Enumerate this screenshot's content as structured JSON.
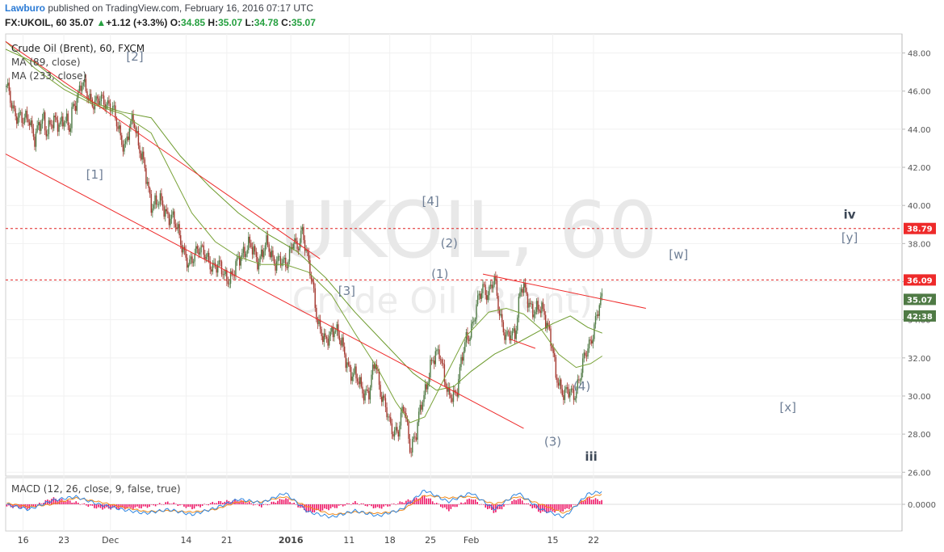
{
  "header": {
    "author": "Lawburo",
    "published": "published on TradingView.com, February 16, 2016 07:17 UTC",
    "symbol": "FX:UKOIL, 60",
    "last": "35.07",
    "change_arrow": "▲",
    "change": "+1.12 (+3.3%)",
    "o_label": "O:",
    "o": "34.85",
    "h_label": "H:",
    "h": "35.07",
    "l_label": "L:",
    "l": "34.78",
    "c_label": "C:",
    "c": "35.07"
  },
  "watermark": {
    "line1": "UKOIL, 60",
    "line2": "Crude Oil (Brent)"
  },
  "legend": {
    "title": "Crude Oil (Brent), 60, FXCM",
    "ma1": "MA (89, close)",
    "ma2": "MA (233, close)",
    "macd": "MACD (12, 26, close, 9, false, true)"
  },
  "colors": {
    "candle_up": "#4f7a45",
    "candle_down": "#a4382f",
    "channel": "#ee2a2a",
    "ma89": "#7aa33a",
    "ma233": "#6c9a2c",
    "hline": "#e02020",
    "macd": "#2f86e0",
    "signal": "#f08a1a",
    "hist": "#ee1566",
    "wave_label": "#6f7f96",
    "label_dark": "#3c4756"
  },
  "price_badges": [
    {
      "text": "38.79",
      "value": 38.79,
      "bg": "#ee2a2a"
    },
    {
      "text": "36.09",
      "value": 36.09,
      "bg": "#ee2a2a"
    },
    {
      "text": "35.07",
      "value": 35.07,
      "bg": "#4f7a45"
    },
    {
      "text": "42:38",
      "value": 34.2,
      "bg": "#4f7a45"
    }
  ],
  "macd_badge": "0.0000",
  "wave_labels": [
    {
      "text": "[2]",
      "date": 22.2,
      "price": 47.6,
      "style": "light"
    },
    {
      "text": "[1]",
      "date": 15.3,
      "price": 41.4,
      "style": "light"
    },
    {
      "text": "[3]",
      "date": 58.6,
      "price": 35.3,
      "style": "light"
    },
    {
      "text": "[4]",
      "date": 73.0,
      "price": 40.0,
      "style": "light"
    },
    {
      "text": "(2)",
      "date": 76.2,
      "price": 37.8,
      "style": "light"
    },
    {
      "text": "(1)",
      "date": 74.6,
      "price": 36.2,
      "style": "light"
    },
    {
      "text": "(4)",
      "date": 99.0,
      "price": 30.3,
      "style": "light"
    },
    {
      "text": "(3)",
      "date": 94.0,
      "price": 27.4,
      "style": "light"
    },
    {
      "text": "iii",
      "date": 100.6,
      "price": 26.6,
      "style": "dark"
    },
    {
      "text": "[w]",
      "date": 115.6,
      "price": 37.2,
      "style": "light"
    },
    {
      "text": "[x]",
      "date": 134.4,
      "price": 29.2,
      "style": "light"
    },
    {
      "text": "iv",
      "date": 145.0,
      "price": 39.3,
      "style": "dark"
    },
    {
      "text": "[y]",
      "date": 145.0,
      "price": 38.1,
      "style": "light"
    }
  ],
  "chart_data": {
    "type": "candlestick",
    "x_unit": "days since Nov 13, 2015",
    "xlim": [
      0,
      154
    ],
    "ylim": [
      25.8,
      49.0
    ],
    "y_ticks": [
      "26.00",
      "28.00",
      "30.00",
      "32.00",
      "34.00",
      "36.00",
      "38.00",
      "40.00",
      "42.00",
      "44.00",
      "46.00",
      "48.00"
    ],
    "x_ticks": [
      {
        "label": "16",
        "x": 3
      },
      {
        "label": "23",
        "x": 10
      },
      {
        "label": "Dec",
        "x": 18
      },
      {
        "label": "14",
        "x": 31
      },
      {
        "label": "21",
        "x": 38
      },
      {
        "label": "2016",
        "x": 49,
        "bold": true
      },
      {
        "label": "11",
        "x": 59
      },
      {
        "label": "18",
        "x": 66
      },
      {
        "label": "25",
        "x": 73
      },
      {
        "label": "Feb",
        "x": 80
      },
      {
        "label": "15",
        "x": 94
      },
      {
        "label": "22",
        "x": 101
      }
    ],
    "price_path": [
      [
        0,
        46.2
      ],
      [
        1.5,
        45.0
      ],
      [
        3,
        44.3
      ],
      [
        4,
        44.8
      ],
      [
        5,
        43.4
      ],
      [
        6.5,
        44.7
      ],
      [
        7,
        44.0
      ],
      [
        8.5,
        44.3
      ],
      [
        10,
        44.6
      ],
      [
        11,
        43.8
      ],
      [
        11.5,
        45.2
      ],
      [
        13,
        46.3
      ],
      [
        14,
        45.9
      ],
      [
        15.5,
        45.3
      ],
      [
        17,
        45.6
      ],
      [
        18,
        45.2
      ],
      [
        19.5,
        44.0
      ],
      [
        20.5,
        43.0
      ],
      [
        22,
        44.7
      ],
      [
        23,
        43.0
      ],
      [
        25,
        40.2
      ],
      [
        27,
        40.0
      ],
      [
        28.5,
        39.3
      ],
      [
        30,
        38.4
      ],
      [
        31.5,
        36.6
      ],
      [
        33,
        38.0
      ],
      [
        34.5,
        37.1
      ],
      [
        36,
        36.9
      ],
      [
        37.5,
        36.4
      ],
      [
        39,
        36.2
      ],
      [
        40.5,
        37.6
      ],
      [
        42,
        37.8
      ],
      [
        43.5,
        37.2
      ],
      [
        45,
        37.9
      ],
      [
        46.5,
        37.0
      ],
      [
        48,
        36.9
      ],
      [
        49.5,
        38.2
      ],
      [
        50,
        37.4
      ],
      [
        51,
        38.9
      ],
      [
        52,
        37.0
      ],
      [
        53.5,
        34.2
      ],
      [
        55,
        32.6
      ],
      [
        56.5,
        33.8
      ],
      [
        58,
        32.3
      ],
      [
        59.5,
        31.2
      ],
      [
        61,
        30.5
      ],
      [
        62.5,
        30.1
      ],
      [
        63.5,
        31.9
      ],
      [
        64.5,
        30.2
      ],
      [
        66,
        28.4
      ],
      [
        67.5,
        28.2
      ],
      [
        68.5,
        29.4
      ],
      [
        69.5,
        27.4
      ],
      [
        70.5,
        27.8
      ],
      [
        71.5,
        29.8
      ],
      [
        73,
        31.4
      ],
      [
        74.5,
        32.6
      ],
      [
        76,
        29.8
      ],
      [
        77.5,
        30.4
      ],
      [
        79,
        32.8
      ],
      [
        80.5,
        34.1
      ],
      [
        82,
        35.8
      ],
      [
        83,
        35.4
      ],
      [
        84,
        36.0
      ],
      [
        85,
        34.3
      ],
      [
        86,
        32.9
      ],
      [
        87.5,
        33.4
      ],
      [
        88.5,
        35.7
      ],
      [
        89.5,
        35.2
      ],
      [
        91,
        34.4
      ],
      [
        92.5,
        34.5
      ],
      [
        93.5,
        33.3
      ],
      [
        94.5,
        31.0
      ],
      [
        96,
        30.2
      ],
      [
        97.5,
        30.0
      ],
      [
        99,
        31.4
      ],
      [
        100.5,
        33.0
      ],
      [
        101.5,
        34.1
      ],
      [
        102.5,
        35.07
      ]
    ],
    "ma89": [
      [
        0,
        48.6
      ],
      [
        5,
        47.2
      ],
      [
        10,
        46.1
      ],
      [
        15,
        45.3
      ],
      [
        20,
        44.8
      ],
      [
        25,
        43.8
      ],
      [
        28,
        42.0
      ],
      [
        32,
        39.6
      ],
      [
        36,
        38.1
      ],
      [
        40,
        37.3
      ],
      [
        44,
        36.9
      ],
      [
        48,
        36.9
      ],
      [
        52,
        36.5
      ],
      [
        56,
        35.3
      ],
      [
        60,
        33.3
      ],
      [
        64,
        31.4
      ],
      [
        67,
        29.7
      ],
      [
        69.5,
        28.6
      ],
      [
        72,
        28.9
      ],
      [
        75,
        30.7
      ],
      [
        79,
        33.1
      ],
      [
        83,
        34.4
      ],
      [
        86,
        34.6
      ],
      [
        89,
        34.3
      ],
      [
        92,
        33.5
      ],
      [
        95,
        32.2
      ],
      [
        98,
        31.5
      ],
      [
        100.5,
        31.7
      ],
      [
        102.5,
        32.1
      ]
    ],
    "ma233": [
      [
        0,
        48.2
      ],
      [
        5,
        47.5
      ],
      [
        10,
        46.3
      ],
      [
        15,
        45.4
      ],
      [
        20,
        44.9
      ],
      [
        25,
        44.6
      ],
      [
        30,
        42.6
      ],
      [
        35,
        41.0
      ],
      [
        40,
        39.6
      ],
      [
        45,
        38.5
      ],
      [
        50,
        37.6
      ],
      [
        55,
        36.2
      ],
      [
        60,
        34.4
      ],
      [
        65,
        32.8
      ],
      [
        70,
        31.2
      ],
      [
        74,
        30.3
      ],
      [
        77,
        30.5
      ],
      [
        80,
        31.3
      ],
      [
        84,
        32.2
      ],
      [
        88,
        32.8
      ],
      [
        91,
        33.3
      ],
      [
        94,
        33.8
      ],
      [
        97,
        34.2
      ],
      [
        100,
        33.6
      ],
      [
        102.5,
        33.3
      ]
    ],
    "channel_lines": [
      {
        "from": [
          0,
          48.6
        ],
        "to": [
          54,
          37.2
        ]
      },
      {
        "from": [
          0,
          42.7
        ],
        "to": [
          89,
          28.3
        ]
      },
      {
        "from": [
          82,
          36.4
        ],
        "to": [
          110,
          34.6
        ]
      },
      {
        "from": [
          86.5,
          33.0
        ],
        "to": [
          91,
          32.5
        ]
      }
    ],
    "horizontal_levels": [
      38.79,
      36.09
    ],
    "macd_range": [
      -0.85,
      0.85
    ],
    "macd": [
      [
        0,
        0.0
      ],
      [
        4,
        -0.2
      ],
      [
        8,
        0.15
      ],
      [
        12,
        0.3
      ],
      [
        16,
        0.0
      ],
      [
        20,
        -0.2
      ],
      [
        24,
        -0.35
      ],
      [
        28,
        -0.2
      ],
      [
        32,
        -0.4
      ],
      [
        36,
        -0.15
      ],
      [
        40,
        0.2
      ],
      [
        44,
        0.05
      ],
      [
        48,
        0.45
      ],
      [
        52,
        -0.3
      ],
      [
        56,
        -0.5
      ],
      [
        60,
        -0.25
      ],
      [
        64,
        -0.45
      ],
      [
        68,
        -0.2
      ],
      [
        72,
        0.55
      ],
      [
        76,
        0.1
      ],
      [
        80,
        0.45
      ],
      [
        84,
        -0.2
      ],
      [
        88,
        0.45
      ],
      [
        92,
        -0.2
      ],
      [
        96,
        -0.5
      ],
      [
        100,
        0.4
      ],
      [
        102.5,
        0.5
      ]
    ],
    "signal": [
      [
        0,
        0.05
      ],
      [
        4,
        -0.1
      ],
      [
        8,
        0.0
      ],
      [
        12,
        0.25
      ],
      [
        16,
        0.1
      ],
      [
        20,
        -0.1
      ],
      [
        24,
        -0.28
      ],
      [
        28,
        -0.25
      ],
      [
        32,
        -0.3
      ],
      [
        36,
        -0.2
      ],
      [
        40,
        0.1
      ],
      [
        44,
        0.1
      ],
      [
        48,
        0.3
      ],
      [
        52,
        -0.1
      ],
      [
        56,
        -0.4
      ],
      [
        60,
        -0.3
      ],
      [
        64,
        -0.35
      ],
      [
        68,
        -0.25
      ],
      [
        72,
        0.35
      ],
      [
        76,
        0.25
      ],
      [
        80,
        0.3
      ],
      [
        84,
        0.0
      ],
      [
        88,
        0.3
      ],
      [
        92,
        0.0
      ],
      [
        96,
        -0.35
      ],
      [
        100,
        0.25
      ],
      [
        102.5,
        0.4
      ]
    ]
  }
}
